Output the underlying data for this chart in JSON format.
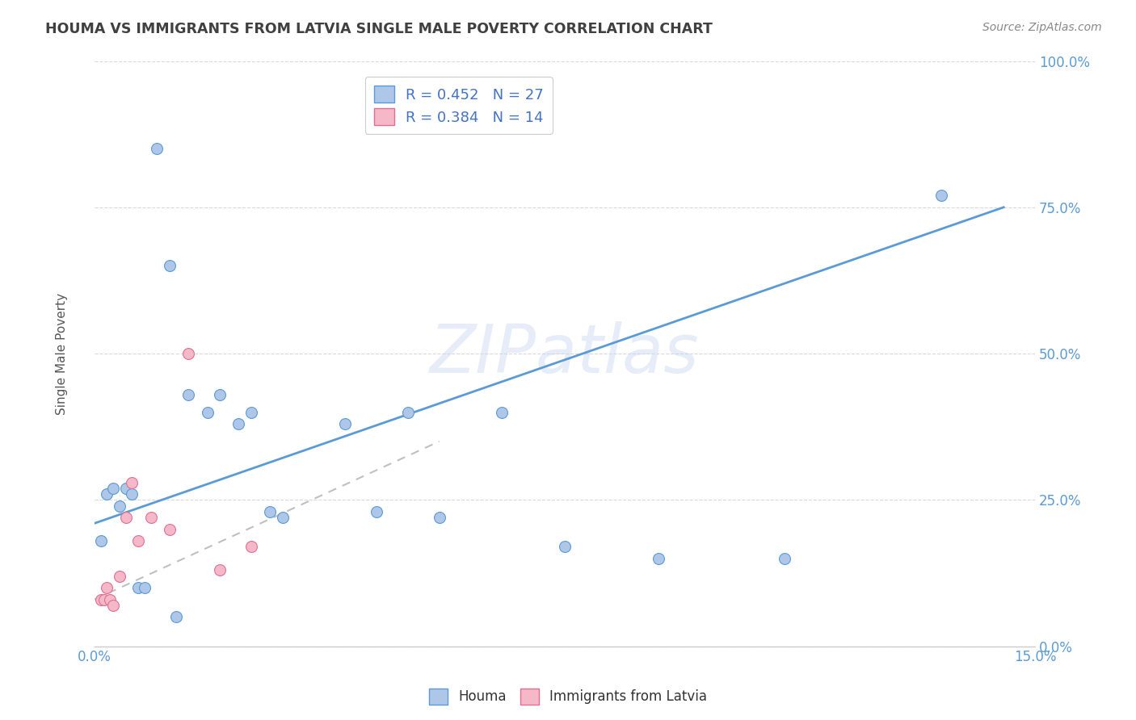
{
  "title": "HOUMA VS IMMIGRANTS FROM LATVIA SINGLE MALE POVERTY CORRELATION CHART",
  "source": "Source: ZipAtlas.com",
  "ylabel": "Single Male Poverty",
  "ytick_labels": [
    "0.0%",
    "25.0%",
    "50.0%",
    "75.0%",
    "100.0%"
  ],
  "ytick_values": [
    0,
    25,
    50,
    75,
    100
  ],
  "xmin": 0.0,
  "xmax": 15.0,
  "ymin": 0.0,
  "ymax": 100.0,
  "houma_color": "#aec6e8",
  "houma_edge_color": "#5b9bd5",
  "latvia_color": "#f4b8c8",
  "latvia_edge_color": "#e07090",
  "houma_R": 0.452,
  "houma_N": 27,
  "latvia_R": 0.384,
  "latvia_N": 14,
  "legend_text_color": "#4472c4",
  "watermark_text": "ZIPatlas",
  "houma_points_x": [
    0.1,
    0.2,
    0.3,
    0.4,
    0.5,
    0.6,
    0.7,
    0.8,
    1.0,
    1.2,
    1.5,
    1.8,
    2.0,
    2.3,
    2.5,
    2.8,
    3.0,
    4.0,
    4.5,
    5.0,
    5.5,
    6.5,
    7.5,
    9.0,
    11.0,
    13.5,
    1.3
  ],
  "houma_points_y": [
    18,
    26,
    27,
    24,
    27,
    26,
    10,
    10,
    85,
    65,
    43,
    40,
    43,
    38,
    40,
    23,
    22,
    38,
    23,
    40,
    22,
    40,
    17,
    15,
    15,
    77,
    5
  ],
  "latvia_points_x": [
    0.1,
    0.15,
    0.2,
    0.25,
    0.3,
    0.4,
    0.5,
    0.6,
    0.7,
    0.9,
    1.2,
    1.5,
    2.0,
    2.5
  ],
  "latvia_points_y": [
    8,
    8,
    10,
    8,
    7,
    12,
    22,
    28,
    18,
    22,
    20,
    50,
    13,
    17
  ],
  "houma_line_x": [
    0.0,
    14.5
  ],
  "houma_line_y": [
    21,
    75
  ],
  "latvia_line_x": [
    0.0,
    5.5
  ],
  "latvia_line_y": [
    8,
    35
  ],
  "background_color": "#ffffff",
  "grid_color": "#d9d9d9",
  "title_color": "#404040",
  "axis_label_color": "#5b9bd5",
  "marker_size": 100,
  "xtick_left_label": "0.0%",
  "xtick_right_label": "15.0%"
}
